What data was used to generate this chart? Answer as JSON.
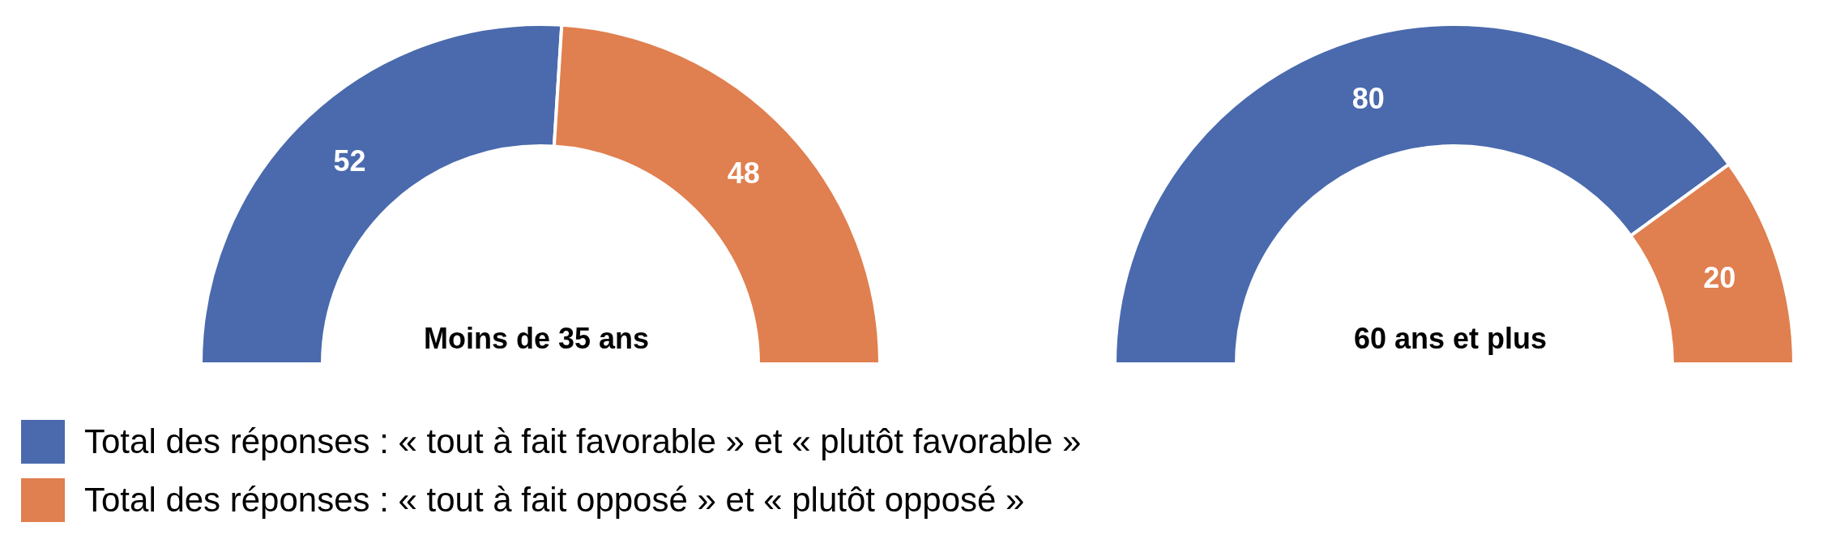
{
  "chart_data": [
    {
      "type": "donut",
      "title": "Moins de 35 ans",
      "categories": [
        "Total des réponses : « tout à fait favorable » et « plutôt favorable »",
        "Total des réponses : « tout à fait opposé » et « plutôt opposé »"
      ],
      "values": [
        52,
        48
      ],
      "colors": [
        "#4a6aad",
        "#e07f4f"
      ],
      "data_labels": true,
      "legend": "bottom left"
    },
    {
      "type": "donut",
      "title": "60 ans et plus",
      "categories": [
        null,
        null
      ],
      "values": [
        80,
        20
      ],
      "colors": [
        "#4a6aad",
        "#e07f4f"
      ],
      "data_labels": true
    }
  ]
}
